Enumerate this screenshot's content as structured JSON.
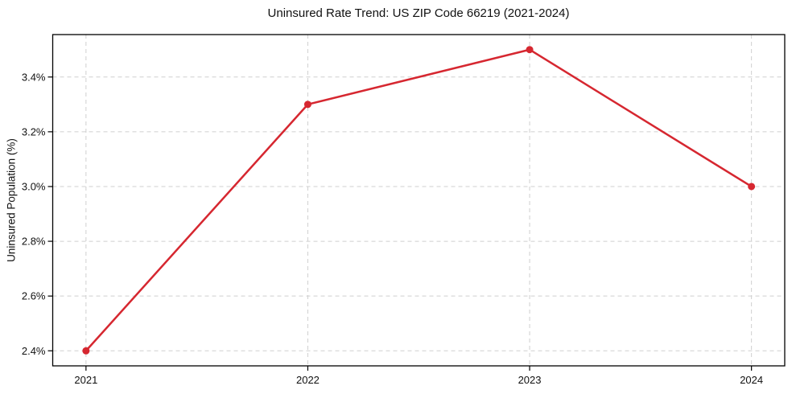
{
  "chart_data": {
    "type": "line",
    "title": "Uninsured Rate Trend: US ZIP Code 66219 (2021-2024)",
    "xlabel": "",
    "ylabel": "Uninsured Population (%)",
    "x": [
      2021,
      2022,
      2023,
      2024
    ],
    "values": [
      2.4,
      3.3,
      3.5,
      3.0
    ],
    "x_tick_labels": [
      "2021",
      "2022",
      "2023",
      "2024"
    ],
    "yticks": [
      2.4,
      2.6,
      2.8,
      3.0,
      3.2,
      3.4
    ],
    "y_tick_labels": [
      "2.4%",
      "2.6%",
      "2.8%",
      "3.0%",
      "3.2%",
      "3.4%"
    ],
    "xlim": [
      2020.85,
      2024.15
    ],
    "ylim": [
      2.345,
      3.555
    ],
    "grid": {
      "visible": true,
      "style": "dashed",
      "color": "#cfcfcf"
    },
    "legend": "none",
    "line_color": "#d62730",
    "marker": "circle",
    "frame_color": "#000000",
    "text_color": "#111111",
    "background": "#ffffff"
  }
}
